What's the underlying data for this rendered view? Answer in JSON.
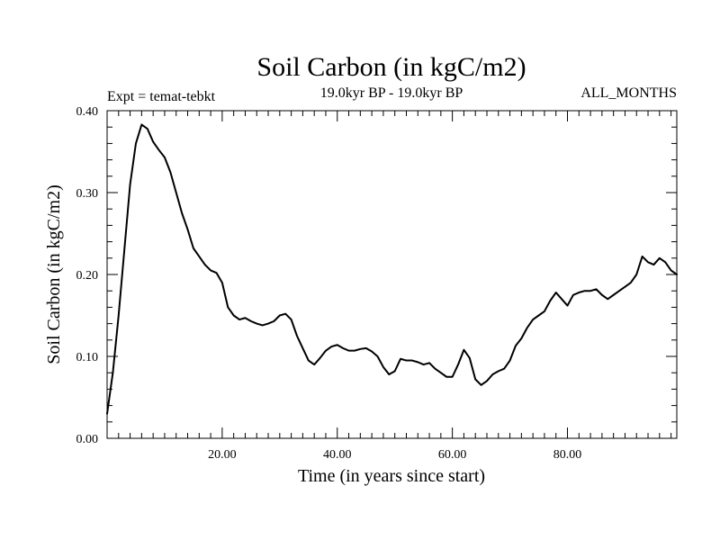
{
  "chart_data": {
    "type": "line",
    "title": "Soil Carbon (in kgC/m2)",
    "subtitle": "19.0kyr BP - 19.0kyr BP",
    "experiment": "Expt = temat-tebkt",
    "period": "ALL_MONTHS",
    "xlabel": "Time (in years since start)",
    "ylabel": "Soil Carbon (in kgC/m2)",
    "xlim": [
      0,
      99
    ],
    "ylim": [
      0,
      0.4
    ],
    "x_ticks": [
      20,
      40,
      60,
      80
    ],
    "x_tick_labels": [
      "20.00",
      "40.00",
      "60.00",
      "80.00"
    ],
    "y_ticks": [
      0,
      0.1,
      0.2,
      0.3,
      0.4
    ],
    "y_tick_labels": [
      "0.00",
      "0.10",
      "0.20",
      "0.30",
      "0.40"
    ],
    "x_minor_step": 2,
    "y_minor_step": 0.02,
    "grid": false,
    "series": [
      {
        "name": "Soil Carbon",
        "x": [
          0,
          1,
          2,
          3,
          4,
          5,
          6,
          7,
          8,
          9,
          10,
          11,
          12,
          13,
          14,
          15,
          16,
          17,
          18,
          19,
          20,
          21,
          22,
          23,
          24,
          25,
          26,
          27,
          28,
          29,
          30,
          31,
          32,
          33,
          34,
          35,
          36,
          37,
          38,
          39,
          40,
          41,
          42,
          43,
          44,
          45,
          46,
          47,
          48,
          49,
          50,
          51,
          52,
          53,
          54,
          55,
          56,
          57,
          58,
          59,
          60,
          61,
          62,
          63,
          64,
          65,
          66,
          67,
          68,
          69,
          70,
          71,
          72,
          73,
          74,
          75,
          76,
          77,
          78,
          79,
          80,
          81,
          82,
          83,
          84,
          85,
          86,
          87,
          88,
          89,
          90,
          91,
          92,
          93,
          94,
          95,
          96,
          97,
          98,
          99
        ],
        "values": [
          0.03,
          0.08,
          0.15,
          0.23,
          0.31,
          0.36,
          0.383,
          0.378,
          0.362,
          0.352,
          0.343,
          0.325,
          0.3,
          0.275,
          0.255,
          0.232,
          0.222,
          0.212,
          0.205,
          0.202,
          0.19,
          0.16,
          0.15,
          0.145,
          0.147,
          0.143,
          0.14,
          0.138,
          0.14,
          0.143,
          0.15,
          0.152,
          0.145,
          0.125,
          0.11,
          0.095,
          0.09,
          0.098,
          0.107,
          0.112,
          0.114,
          0.11,
          0.107,
          0.107,
          0.109,
          0.11,
          0.106,
          0.1,
          0.087,
          0.078,
          0.082,
          0.097,
          0.095,
          0.095,
          0.093,
          0.09,
          0.092,
          0.085,
          0.08,
          0.075,
          0.075,
          0.09,
          0.108,
          0.098,
          0.072,
          0.065,
          0.07,
          0.078,
          0.082,
          0.085,
          0.095,
          0.113,
          0.122,
          0.135,
          0.145,
          0.15,
          0.155,
          0.168,
          0.178,
          0.17,
          0.162,
          0.175,
          0.178,
          0.18,
          0.18,
          0.182,
          0.175,
          0.17,
          0.175,
          0.18,
          0.185,
          0.19,
          0.2,
          0.222,
          0.215,
          0.212,
          0.22,
          0.215,
          0.205,
          0.2
        ]
      }
    ]
  }
}
